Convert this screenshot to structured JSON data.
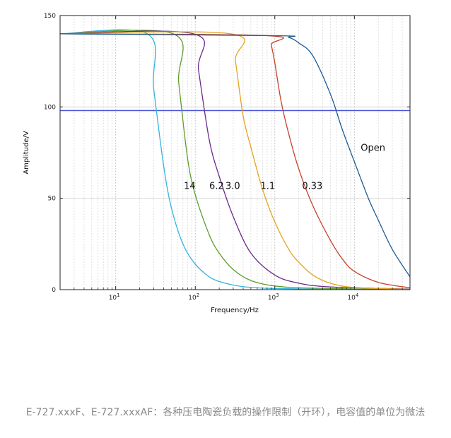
{
  "chart_data": {
    "type": "line",
    "xlabel": "Frequency/Hz",
    "ylabel": "Amplitude/V",
    "xscale": "log",
    "xlim": [
      2,
      50000
    ],
    "ylim": [
      0,
      150
    ],
    "x_tick_values": [
      10,
      100,
      1000,
      10000
    ],
    "x_tick_labels": [
      "10",
      "10",
      "10",
      "10"
    ],
    "x_tick_exponents": [
      "1",
      "2",
      "3",
      "4"
    ],
    "y_ticks": [
      0,
      50,
      100,
      150
    ],
    "grid": true,
    "reference_line": {
      "y": 98,
      "color": "#4a56d8"
    },
    "series": [
      {
        "name": "14",
        "color": "#33b4dc",
        "label_at": [
          72,
          55
        ],
        "points": [
          [
            2,
            140
          ],
          [
            25,
            140
          ],
          [
            30,
            110
          ],
          [
            40,
            68
          ],
          [
            50,
            45
          ],
          [
            70,
            25
          ],
          [
            100,
            14
          ],
          [
            150,
            7
          ],
          [
            200,
            4.5
          ],
          [
            300,
            2.5
          ],
          [
            500,
            1.2
          ],
          [
            1000,
            0.6
          ],
          [
            5000,
            0.2
          ],
          [
            50000,
            0
          ]
        ]
      },
      {
        "name": "6.2",
        "color": "#5e9c2e",
        "label_at": [
          150,
          55
        ],
        "points": [
          [
            2,
            140
          ],
          [
            53,
            140
          ],
          [
            62,
            113
          ],
          [
            80,
            72
          ],
          [
            100,
            52
          ],
          [
            150,
            30
          ],
          [
            200,
            20
          ],
          [
            300,
            11
          ],
          [
            500,
            5
          ],
          [
            1000,
            2
          ],
          [
            3000,
            0.8
          ],
          [
            50000,
            0
          ]
        ]
      },
      {
        "name": "3.0",
        "color": "#6c2a8a",
        "label_at": [
          240,
          55
        ],
        "points": [
          [
            2,
            140
          ],
          [
            95,
            140
          ],
          [
            110,
            120
          ],
          [
            150,
            82
          ],
          [
            200,
            62
          ],
          [
            300,
            40
          ],
          [
            500,
            20
          ],
          [
            1000,
            8
          ],
          [
            2000,
            3.5
          ],
          [
            5000,
            1.5
          ],
          [
            50000,
            0.3
          ]
        ]
      },
      {
        "name": "1.1",
        "color": "#e6a219",
        "label_at": [
          660,
          55
        ],
        "points": [
          [
            2,
            140
          ],
          [
            280,
            140
          ],
          [
            320,
            125
          ],
          [
            400,
            95
          ],
          [
            500,
            78
          ],
          [
            700,
            55
          ],
          [
            1000,
            37
          ],
          [
            1500,
            22
          ],
          [
            2000,
            15
          ],
          [
            3000,
            8
          ],
          [
            5000,
            3.5
          ],
          [
            10000,
            1.2
          ],
          [
            50000,
            0.2
          ]
        ]
      },
      {
        "name": "0.33",
        "color": "#c8412a",
        "label_at": [
          2200,
          55
        ],
        "points": [
          [
            2,
            140
          ],
          [
            800,
            139
          ],
          [
            900,
            134
          ],
          [
            1000,
            124
          ],
          [
            1200,
            103
          ],
          [
            1500,
            85
          ],
          [
            2000,
            66
          ],
          [
            3000,
            46
          ],
          [
            5000,
            27
          ],
          [
            7000,
            17
          ],
          [
            10000,
            10
          ],
          [
            20000,
            4
          ],
          [
            50000,
            1
          ]
        ]
      },
      {
        "name": "Open",
        "color": "#1f5c96",
        "label_at": [
          12000,
          76
        ],
        "points": [
          [
            2,
            140
          ],
          [
            1000,
            139
          ],
          [
            1500,
            138
          ],
          [
            2000,
            135
          ],
          [
            3000,
            128
          ],
          [
            5000,
            107
          ],
          [
            7000,
            88
          ],
          [
            10000,
            70
          ],
          [
            15000,
            50
          ],
          [
            20000,
            38
          ],
          [
            30000,
            22
          ],
          [
            50000,
            7
          ]
        ]
      }
    ]
  },
  "caption": "E-727.xxxF、E-727.xxxAF：各种压电陶瓷负载的操作限制（开环），电容值的单位为微法"
}
